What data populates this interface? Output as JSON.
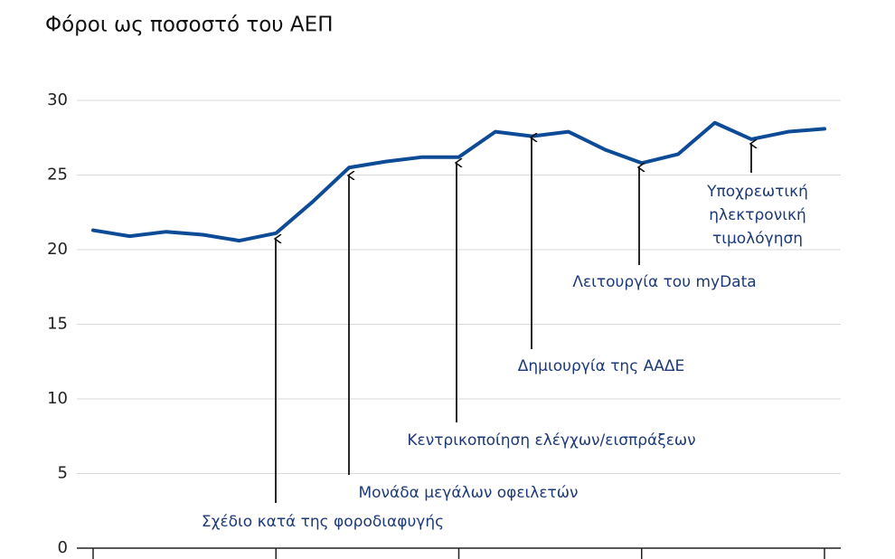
{
  "chart_data": {
    "type": "line",
    "title": "Φόροι ως ποσοστό του ΑΕΠ",
    "categories": [
      null,
      null,
      null,
      null,
      null,
      null,
      null,
      null,
      null,
      null,
      null,
      null,
      null,
      null,
      null,
      null,
      null,
      null,
      null,
      null,
      null
    ],
    "series": [
      {
        "name": null,
        "color": "#0d4b96",
        "values": [
          21.3,
          20.9,
          21.2,
          21.0,
          20.6,
          21.1,
          23.2,
          25.5,
          25.9,
          26.2,
          26.2,
          27.9,
          27.6,
          27.9,
          26.7,
          25.8,
          26.4,
          28.5,
          27.4,
          27.9,
          28.1
        ]
      }
    ],
    "ylim": [
      0,
      30
    ],
    "yticks": [
      0,
      5,
      10,
      15,
      20,
      25,
      30
    ],
    "grid": true,
    "annotations": [
      {
        "lines": [
          "Σχέδιο κατά της φοροδιαφυγής"
        ]
      },
      {
        "lines": [
          "Μονάδα μεγάλων οφειλετών"
        ]
      },
      {
        "lines": [
          "Κεντρικοποίηση ελέγχων/εισπράξεων"
        ]
      },
      {
        "lines": [
          "Δημιουργία της ΑΑΔΕ"
        ]
      },
      {
        "lines": [
          "Λειτουργία του myData"
        ]
      },
      {
        "lines": [
          "Υποχρεωτική",
          "ηλεκτρονική",
          "τιμολόγηση"
        ]
      }
    ]
  }
}
